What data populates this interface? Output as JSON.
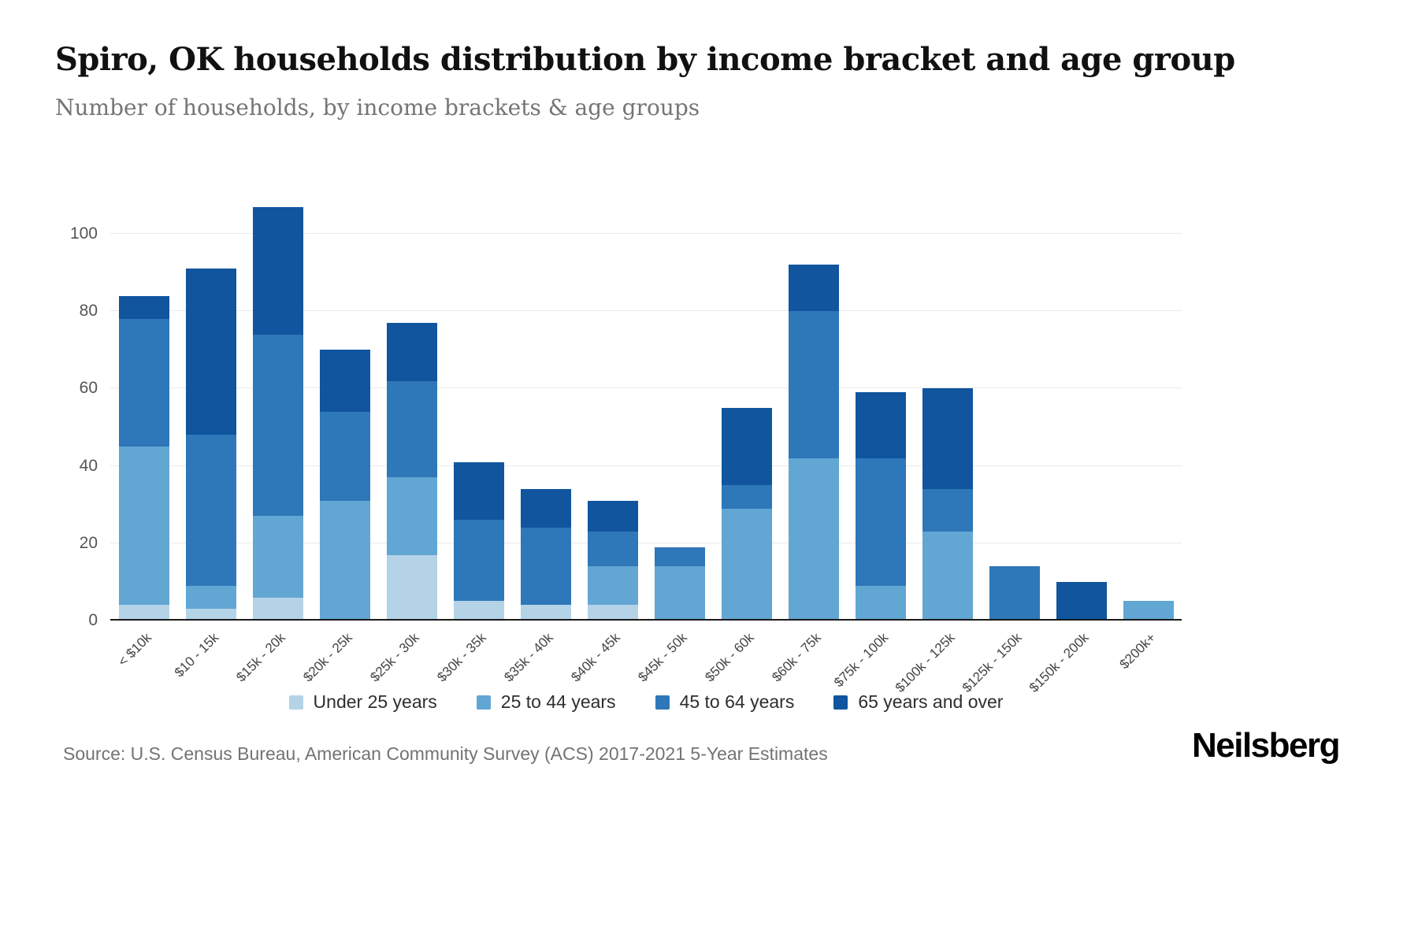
{
  "header": {
    "title": "Spiro, OK households distribution by income bracket and age group",
    "subtitle": "Number of households, by income brackets & age groups"
  },
  "footer": {
    "source": "Source: U.S. Census Bureau, American Community Survey (ACS) 2017-2021 5-Year Estimates",
    "brand": "Neilsberg"
  },
  "chart_data": {
    "type": "bar",
    "stacked": true,
    "title": "Spiro, OK households distribution by income bracket and age group",
    "subtitle": "Number of households, by income brackets & age groups",
    "xlabel": "",
    "ylabel": "Number of households",
    "ylim": [
      0,
      110
    ],
    "yticks": [
      0,
      20,
      40,
      60,
      80,
      100
    ],
    "grid": true,
    "legend_position": "bottom",
    "categories": [
      "< $10k",
      "$10 - 15k",
      "$15k - 20k",
      "$20k - 25k",
      "$25k - 30k",
      "$30k - 35k",
      "$35k - 40k",
      "$40k - 45k",
      "$45k - 50k",
      "$50k - 60k",
      "$60k - 75k",
      "$75k - 100k",
      "$100k - 125k",
      "$125k - 150k",
      "$150k - 200k",
      "$200k+"
    ],
    "series": [
      {
        "name": "Under 25 years",
        "color": "#b5d3e7",
        "values": [
          4,
          3,
          6,
          0,
          17,
          5,
          4,
          4,
          0,
          0,
          0,
          0,
          0,
          0,
          0,
          0
        ]
      },
      {
        "name": "25 to 44 years",
        "color": "#62a6d4",
        "values": [
          41,
          6,
          21,
          31,
          20,
          0,
          0,
          10,
          14,
          29,
          42,
          9,
          23,
          0,
          0,
          5
        ]
      },
      {
        "name": "45 to 64 years",
        "color": "#2e77b8",
        "values": [
          33,
          39,
          47,
          23,
          25,
          21,
          20,
          9,
          5,
          6,
          38,
          33,
          11,
          14,
          0,
          0
        ]
      },
      {
        "name": "65 years and over",
        "color": "#10559e",
        "values": [
          6,
          43,
          33,
          16,
          15,
          15,
          10,
          8,
          0,
          20,
          12,
          17,
          26,
          0,
          10,
          0
        ]
      }
    ]
  }
}
